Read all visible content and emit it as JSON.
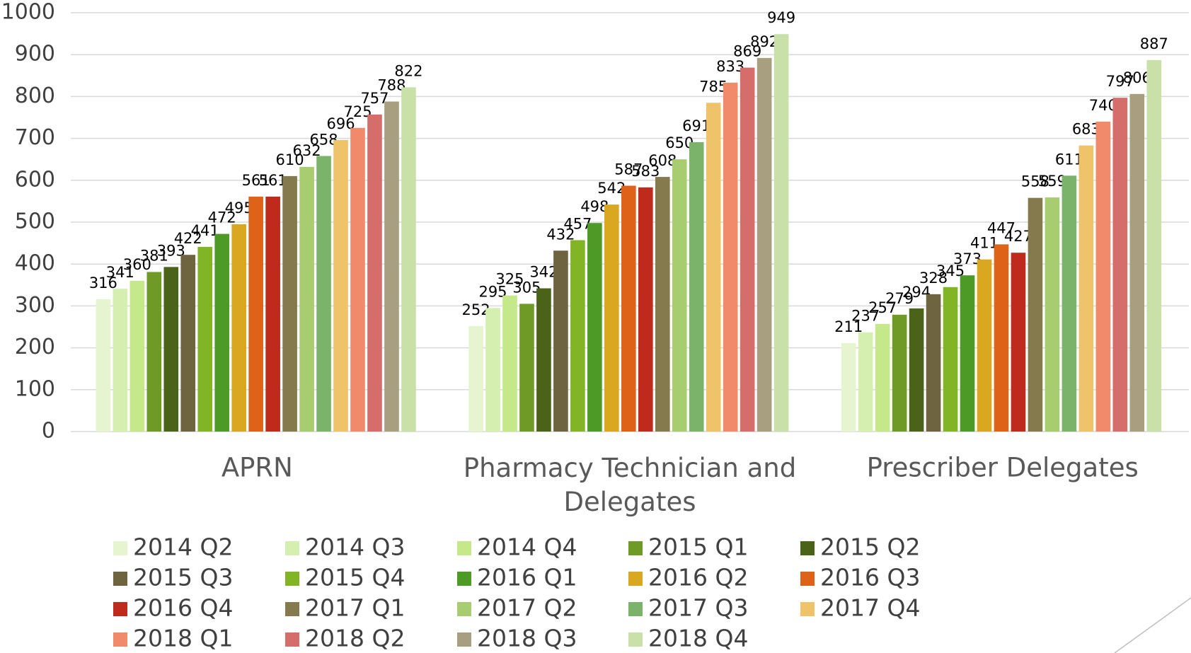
{
  "chart_data": {
    "type": "bar",
    "categories": [
      "APRN",
      "Pharmacy Technician and Delegates",
      "Prescriber Delegates"
    ],
    "ylim": [
      0,
      1000
    ],
    "yticks": [
      0,
      100,
      200,
      300,
      400,
      500,
      600,
      700,
      800,
      900,
      1000
    ],
    "grid": true,
    "legend": "bottom",
    "series": [
      {
        "name": "2014 Q2",
        "color": "#e6f4cf",
        "values": [
          316,
          252,
          211
        ]
      },
      {
        "name": "2014 Q3",
        "color": "#d5efb0",
        "values": [
          341,
          295,
          237
        ]
      },
      {
        "name": "2014 Q4",
        "color": "#c5e88a",
        "values": [
          360,
          325,
          257
        ]
      },
      {
        "name": "2015 Q1",
        "color": "#6f9a26",
        "values": [
          381,
          305,
          279
        ]
      },
      {
        "name": "2015 Q2",
        "color": "#4a6318",
        "values": [
          393,
          342,
          294
        ]
      },
      {
        "name": "2015 Q3",
        "color": "#6e6440",
        "values": [
          422,
          432,
          328
        ]
      },
      {
        "name": "2015 Q4",
        "color": "#82b526",
        "values": [
          441,
          457,
          345
        ]
      },
      {
        "name": "2016 Q1",
        "color": "#4e9a26",
        "values": [
          472,
          498,
          373
        ]
      },
      {
        "name": "2016 Q2",
        "color": "#d9a820",
        "values": [
          495,
          542,
          411
        ]
      },
      {
        "name": "2016 Q3",
        "color": "#de6218",
        "values": [
          561,
          587,
          447
        ]
      },
      {
        "name": "2016 Q4",
        "color": "#be2a1c",
        "values": [
          561,
          583,
          427
        ]
      },
      {
        "name": "2017 Q1",
        "color": "#857a4e",
        "values": [
          610,
          608,
          558
        ]
      },
      {
        "name": "2017 Q2",
        "color": "#a8cc70",
        "values": [
          632,
          650,
          559
        ]
      },
      {
        "name": "2017 Q3",
        "color": "#7cb36a",
        "values": [
          658,
          691,
          611
        ]
      },
      {
        "name": "2017 Q4",
        "color": "#efc36a",
        "values": [
          696,
          785,
          683
        ]
      },
      {
        "name": "2018 Q1",
        "color": "#f08a6a",
        "values": [
          725,
          833,
          740
        ]
      },
      {
        "name": "2018 Q2",
        "color": "#d56d6a",
        "values": [
          757,
          869,
          797
        ]
      },
      {
        "name": "2018 Q3",
        "color": "#a89e80",
        "values": [
          788,
          892,
          806
        ]
      },
      {
        "name": "2018 Q4",
        "color": "#c9e0a8",
        "values": [
          822,
          949,
          887
        ]
      }
    ]
  }
}
